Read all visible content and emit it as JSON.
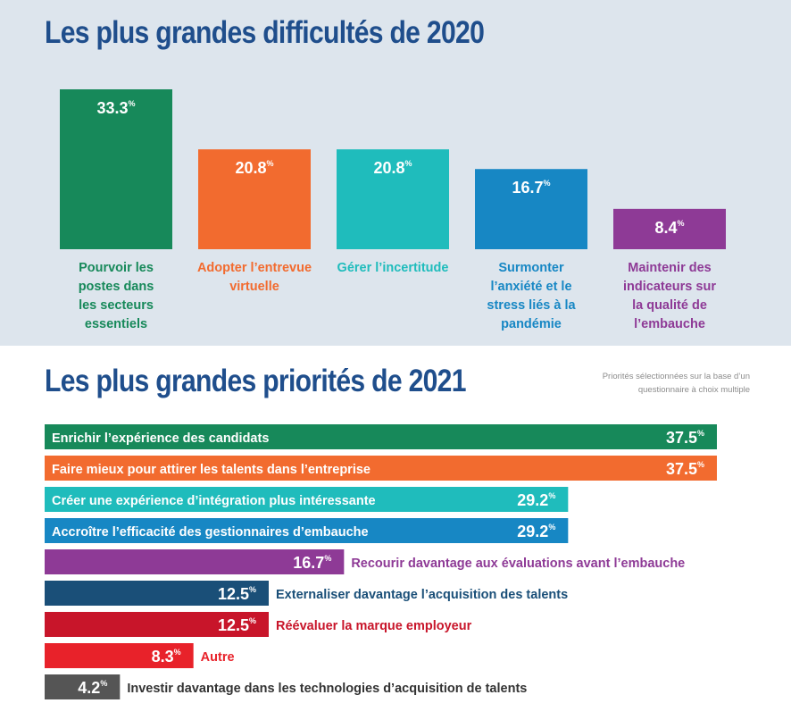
{
  "chart_data": [
    {
      "type": "bar",
      "orientation": "vertical",
      "title": "Les plus grandes difficultés de 2020",
      "unit": "%",
      "categories": [
        "Pourvoir les postes dans les secteurs essentiels",
        "Adopter l’entrevue virtuelle",
        "Gérer l’incertitude",
        "Surmonter l’anxiété et le stress liés à la pandémie",
        "Maintenir des indicateurs sur la qualité de l’embauche"
      ],
      "label_lines": [
        [
          "Pourvoir les",
          "postes dans",
          "les secteurs",
          "essentiels"
        ],
        [
          "Adopter l’entrevue",
          "virtuelle"
        ],
        [
          "Gérer l’incertitude"
        ],
        [
          "Surmonter",
          "l’anxiété et le",
          "stress liés à la",
          "pandémie"
        ],
        [
          "Maintenir des",
          "indicateurs sur",
          "la qualité de",
          "l’embauche"
        ]
      ],
      "values": [
        33.3,
        20.8,
        20.8,
        16.7,
        8.4
      ],
      "value_labels": [
        "33.3",
        "20.8",
        "20.8",
        "16.7",
        "8.4"
      ],
      "colors": [
        "#17895a",
        "#f26b2f",
        "#1fbcbc",
        "#1787c4",
        "#8e3a96"
      ],
      "label_colors": [
        "#17895a",
        "#f26b2f",
        "#1fbcbc",
        "#1787c4",
        "#8e3a96"
      ]
    },
    {
      "type": "bar",
      "orientation": "horizontal",
      "title": "Les plus grandes priorités de 2021",
      "note": "Priorités sélectionnées sur la base d’un questionnaire à choix multiple",
      "unit": "%",
      "categories": [
        "Enrichir l’expérience des candidats",
        "Faire mieux pour attirer les talents dans l’entreprise",
        "Créer une expérience d’intégration plus intéressante",
        "Accroître l’efficacité des gestionnaires d’embauche",
        "Recourir davantage aux évaluations avant l’embauche",
        "Externaliser davantage l’acquisition des talents",
        "Réévaluer la marque employeur",
        "Autre",
        "Investir davantage dans les technologies d’acquisition de talents"
      ],
      "values": [
        37.5,
        37.5,
        29.2,
        29.2,
        16.7,
        12.5,
        12.5,
        8.3,
        4.2
      ],
      "value_labels": [
        "37.5",
        "37.5",
        "29.2",
        "29.2",
        "16.7",
        "12.5",
        "12.5",
        "8.3",
        "4.2"
      ],
      "label_inside": [
        true,
        true,
        true,
        true,
        false,
        false,
        false,
        false,
        false
      ],
      "colors": [
        "#17895a",
        "#f26b2f",
        "#1fbcbc",
        "#1787c4",
        "#8e3a96",
        "#1a4f78",
        "#c8152a",
        "#e8222a",
        "#555555"
      ],
      "label_colors": [
        "#ffffff",
        "#ffffff",
        "#ffffff",
        "#ffffff",
        "#8e3a96",
        "#1a4f78",
        "#c8152a",
        "#e8222a",
        "#333333"
      ]
    }
  ]
}
